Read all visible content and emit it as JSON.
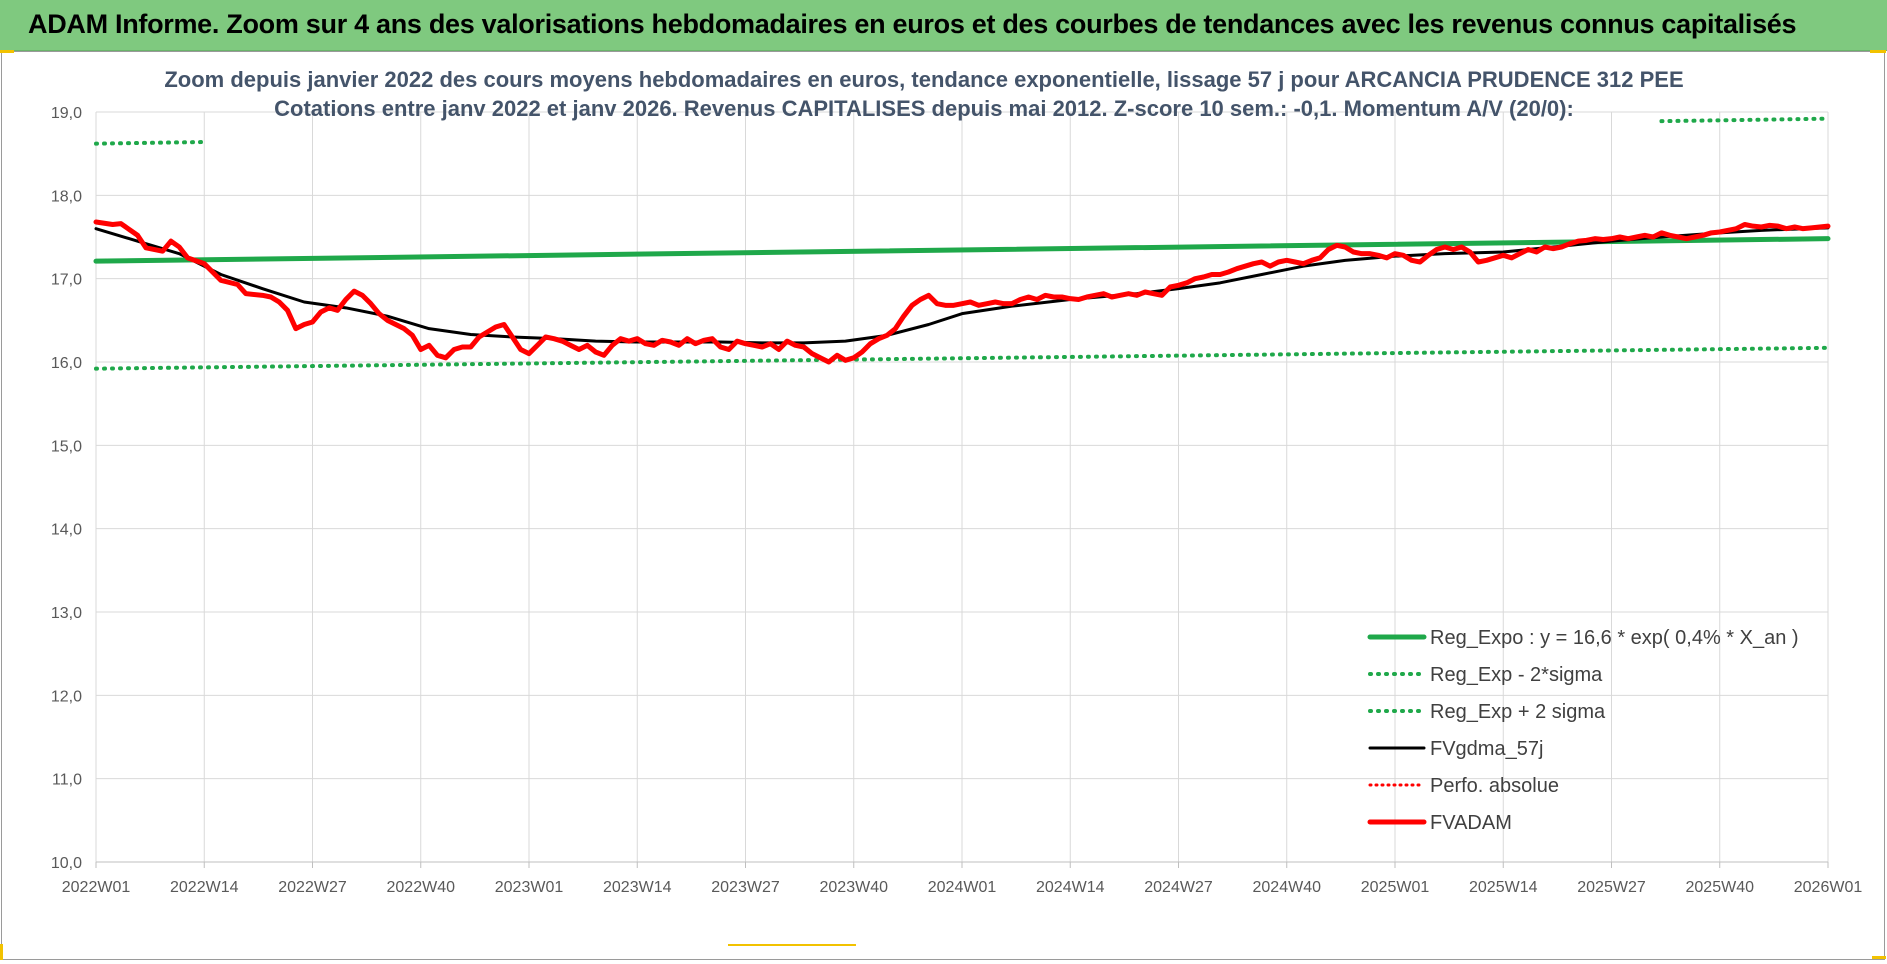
{
  "banner": {
    "title": "ADAM Informe. Zoom sur 4 ans des valorisations hebdomadaires en euros et des courbes de tendances avec les revenus connus capitalisés",
    "background": "#7fc97f"
  },
  "chart_data": {
    "type": "line",
    "title": "Zoom depuis janvier 2022 des cours moyens hebdomadaires en euros, tendance exponentielle, lissage 57 j pour ARCANCIA PRUDENCE 312 PEE",
    "subtitle": "Cotations entre janv 2022 et janv 2026. Revenus CAPITALISES depuis mai 2012. Z-score 10 sem.: -0,1. Momentum A/V (20/0):",
    "ylim": [
      10.0,
      19.0
    ],
    "yticks": [
      "10,0",
      "11,0",
      "12,0",
      "13,0",
      "14,0",
      "15,0",
      "16,0",
      "17,0",
      "18,0",
      "19,0"
    ],
    "ytick_values": [
      10,
      11,
      12,
      13,
      14,
      15,
      16,
      17,
      18,
      19
    ],
    "x_count": 209,
    "xticks": [
      {
        "index": 0,
        "label": "2022W01"
      },
      {
        "index": 13,
        "label": "2022W14"
      },
      {
        "index": 26,
        "label": "2022W27"
      },
      {
        "index": 39,
        "label": "2022W40"
      },
      {
        "index": 52,
        "label": "2023W01"
      },
      {
        "index": 65,
        "label": "2023W14"
      },
      {
        "index": 78,
        "label": "2023W27"
      },
      {
        "index": 91,
        "label": "2023W40"
      },
      {
        "index": 104,
        "label": "2024W01"
      },
      {
        "index": 117,
        "label": "2024W14"
      },
      {
        "index": 130,
        "label": "2024W27"
      },
      {
        "index": 143,
        "label": "2024W40"
      },
      {
        "index": 156,
        "label": "2025W01"
      },
      {
        "index": 169,
        "label": "2025W14"
      },
      {
        "index": 182,
        "label": "2025W27"
      },
      {
        "index": 195,
        "label": "2025W40"
      },
      {
        "index": 208,
        "label": "2026W01"
      }
    ],
    "grid": true,
    "legend_position": "bottom-right",
    "series": [
      {
        "name": "Reg_Expo : y = 16,6 * exp( 0,4% *  X_an )",
        "color": "#1fa84a",
        "style": "solid",
        "width": 5,
        "points": [
          [
            0,
            17.21
          ],
          [
            208,
            17.48
          ]
        ]
      },
      {
        "name": "Reg_Exp - 2*sigma",
        "color": "#1fa84a",
        "style": "dotted",
        "width": 4,
        "points": [
          [
            0,
            15.92
          ],
          [
            208,
            16.17
          ]
        ]
      },
      {
        "name": "Reg_Exp + 2 sigma",
        "color": "#1fa84a",
        "style": "dotted",
        "width": 4,
        "segments": [
          [
            [
              0,
              18.62
            ],
            [
              13,
              18.64
            ]
          ],
          [
            [
              188,
              18.89
            ],
            [
              208,
              18.92
            ]
          ]
        ]
      },
      {
        "name": "FVgdma_57j",
        "color": "#000000",
        "style": "solid",
        "width": 3,
        "points": [
          [
            0,
            17.6
          ],
          [
            5,
            17.45
          ],
          [
            10,
            17.3
          ],
          [
            15,
            17.05
          ],
          [
            20,
            16.88
          ],
          [
            25,
            16.72
          ],
          [
            30,
            16.65
          ],
          [
            35,
            16.55
          ],
          [
            40,
            16.4
          ],
          [
            45,
            16.33
          ],
          [
            50,
            16.3
          ],
          [
            55,
            16.28
          ],
          [
            60,
            16.25
          ],
          [
            65,
            16.24
          ],
          [
            70,
            16.24
          ],
          [
            75,
            16.24
          ],
          [
            80,
            16.23
          ],
          [
            85,
            16.23
          ],
          [
            90,
            16.25
          ],
          [
            95,
            16.32
          ],
          [
            100,
            16.45
          ],
          [
            104,
            16.58
          ],
          [
            110,
            16.67
          ],
          [
            117,
            16.75
          ],
          [
            125,
            16.82
          ],
          [
            130,
            16.88
          ],
          [
            135,
            16.95
          ],
          [
            140,
            17.05
          ],
          [
            145,
            17.15
          ],
          [
            150,
            17.22
          ],
          [
            156,
            17.27
          ],
          [
            162,
            17.3
          ],
          [
            169,
            17.32
          ],
          [
            175,
            17.38
          ],
          [
            182,
            17.45
          ],
          [
            188,
            17.5
          ],
          [
            195,
            17.55
          ],
          [
            200,
            17.58
          ],
          [
            208,
            17.61
          ]
        ]
      },
      {
        "name": "Perfo. absolue",
        "color": "#ff0000",
        "style": "dotted",
        "width": 3,
        "points": []
      },
      {
        "name": "FVADAM",
        "color": "#ff0000",
        "style": "solid",
        "width": 5,
        "points": [
          [
            0,
            17.68
          ],
          [
            2,
            17.65
          ],
          [
            3,
            17.66
          ],
          [
            5,
            17.52
          ],
          [
            6,
            17.37
          ],
          [
            8,
            17.33
          ],
          [
            9,
            17.45
          ],
          [
            10,
            17.38
          ],
          [
            11,
            17.25
          ],
          [
            13,
            17.18
          ],
          [
            14,
            17.08
          ],
          [
            15,
            16.98
          ],
          [
            17,
            16.93
          ],
          [
            18,
            16.82
          ],
          [
            20,
            16.8
          ],
          [
            21,
            16.78
          ],
          [
            22,
            16.72
          ],
          [
            23,
            16.62
          ],
          [
            24,
            16.4
          ],
          [
            25,
            16.45
          ],
          [
            26,
            16.48
          ],
          [
            27,
            16.6
          ],
          [
            28,
            16.65
          ],
          [
            29,
            16.62
          ],
          [
            30,
            16.75
          ],
          [
            31,
            16.85
          ],
          [
            32,
            16.8
          ],
          [
            33,
            16.7
          ],
          [
            34,
            16.58
          ],
          [
            35,
            16.5
          ],
          [
            36,
            16.45
          ],
          [
            37,
            16.4
          ],
          [
            38,
            16.32
          ],
          [
            39,
            16.15
          ],
          [
            40,
            16.2
          ],
          [
            41,
            16.08
          ],
          [
            42,
            16.05
          ],
          [
            43,
            16.15
          ],
          [
            44,
            16.18
          ],
          [
            45,
            16.18
          ],
          [
            46,
            16.3
          ],
          [
            47,
            16.36
          ],
          [
            48,
            16.42
          ],
          [
            49,
            16.45
          ],
          [
            50,
            16.3
          ],
          [
            51,
            16.15
          ],
          [
            52,
            16.1
          ],
          [
            53,
            16.2
          ],
          [
            54,
            16.3
          ],
          [
            55,
            16.28
          ],
          [
            56,
            16.25
          ],
          [
            57,
            16.2
          ],
          [
            58,
            16.15
          ],
          [
            59,
            16.2
          ],
          [
            60,
            16.12
          ],
          [
            61,
            16.08
          ],
          [
            62,
            16.2
          ],
          [
            63,
            16.28
          ],
          [
            64,
            16.25
          ],
          [
            65,
            16.28
          ],
          [
            66,
            16.22
          ],
          [
            67,
            16.2
          ],
          [
            68,
            16.26
          ],
          [
            69,
            16.24
          ],
          [
            70,
            16.2
          ],
          [
            71,
            16.28
          ],
          [
            72,
            16.22
          ],
          [
            73,
            16.26
          ],
          [
            74,
            16.28
          ],
          [
            75,
            16.18
          ],
          [
            76,
            16.15
          ],
          [
            77,
            16.25
          ],
          [
            78,
            16.22
          ],
          [
            79,
            16.2
          ],
          [
            80,
            16.18
          ],
          [
            81,
            16.22
          ],
          [
            82,
            16.15
          ],
          [
            83,
            16.25
          ],
          [
            84,
            16.2
          ],
          [
            85,
            16.18
          ],
          [
            86,
            16.1
          ],
          [
            87,
            16.05
          ],
          [
            88,
            16.0
          ],
          [
            89,
            16.08
          ],
          [
            90,
            16.02
          ],
          [
            91,
            16.05
          ],
          [
            92,
            16.12
          ],
          [
            93,
            16.22
          ],
          [
            94,
            16.28
          ],
          [
            95,
            16.32
          ],
          [
            96,
            16.4
          ],
          [
            97,
            16.55
          ],
          [
            98,
            16.68
          ],
          [
            99,
            16.75
          ],
          [
            100,
            16.8
          ],
          [
            101,
            16.7
          ],
          [
            102,
            16.68
          ],
          [
            103,
            16.68
          ],
          [
            104,
            16.7
          ],
          [
            105,
            16.72
          ],
          [
            106,
            16.68
          ],
          [
            107,
            16.7
          ],
          [
            108,
            16.72
          ],
          [
            109,
            16.7
          ],
          [
            110,
            16.7
          ],
          [
            111,
            16.75
          ],
          [
            112,
            16.78
          ],
          [
            113,
            16.75
          ],
          [
            114,
            16.8
          ],
          [
            115,
            16.78
          ],
          [
            116,
            16.78
          ],
          [
            117,
            16.76
          ],
          [
            118,
            16.75
          ],
          [
            119,
            16.78
          ],
          [
            120,
            16.8
          ],
          [
            121,
            16.82
          ],
          [
            122,
            16.78
          ],
          [
            123,
            16.8
          ],
          [
            124,
            16.82
          ],
          [
            125,
            16.8
          ],
          [
            126,
            16.84
          ],
          [
            127,
            16.82
          ],
          [
            128,
            16.8
          ],
          [
            129,
            16.9
          ],
          [
            130,
            16.92
          ],
          [
            131,
            16.95
          ],
          [
            132,
            17.0
          ],
          [
            133,
            17.02
          ],
          [
            134,
            17.05
          ],
          [
            135,
            17.05
          ],
          [
            136,
            17.08
          ],
          [
            137,
            17.12
          ],
          [
            138,
            17.15
          ],
          [
            139,
            17.18
          ],
          [
            140,
            17.2
          ],
          [
            141,
            17.15
          ],
          [
            142,
            17.2
          ],
          [
            143,
            17.22
          ],
          [
            144,
            17.2
          ],
          [
            145,
            17.18
          ],
          [
            146,
            17.22
          ],
          [
            147,
            17.25
          ],
          [
            148,
            17.35
          ],
          [
            149,
            17.4
          ],
          [
            150,
            17.38
          ],
          [
            151,
            17.32
          ],
          [
            152,
            17.3
          ],
          [
            153,
            17.3
          ],
          [
            154,
            17.28
          ],
          [
            155,
            17.25
          ],
          [
            156,
            17.3
          ],
          [
            157,
            17.28
          ],
          [
            158,
            17.22
          ],
          [
            159,
            17.2
          ],
          [
            160,
            17.28
          ],
          [
            161,
            17.35
          ],
          [
            162,
            17.38
          ],
          [
            163,
            17.35
          ],
          [
            164,
            17.38
          ],
          [
            165,
            17.32
          ],
          [
            166,
            17.2
          ],
          [
            167,
            17.22
          ],
          [
            168,
            17.25
          ],
          [
            169,
            17.28
          ],
          [
            170,
            17.25
          ],
          [
            171,
            17.3
          ],
          [
            172,
            17.35
          ],
          [
            173,
            17.32
          ],
          [
            174,
            17.38
          ],
          [
            175,
            17.36
          ],
          [
            176,
            17.38
          ],
          [
            177,
            17.42
          ],
          [
            178,
            17.45
          ],
          [
            179,
            17.46
          ],
          [
            180,
            17.48
          ],
          [
            181,
            17.47
          ],
          [
            182,
            17.48
          ],
          [
            183,
            17.5
          ],
          [
            184,
            17.48
          ],
          [
            185,
            17.5
          ],
          [
            186,
            17.52
          ],
          [
            187,
            17.5
          ],
          [
            188,
            17.55
          ],
          [
            189,
            17.52
          ],
          [
            190,
            17.5
          ],
          [
            191,
            17.48
          ],
          [
            192,
            17.5
          ],
          [
            193,
            17.52
          ],
          [
            194,
            17.55
          ],
          [
            195,
            17.56
          ],
          [
            196,
            17.58
          ],
          [
            197,
            17.6
          ],
          [
            198,
            17.65
          ],
          [
            199,
            17.63
          ],
          [
            200,
            17.62
          ],
          [
            201,
            17.64
          ],
          [
            202,
            17.63
          ],
          [
            203,
            17.6
          ],
          [
            204,
            17.62
          ],
          [
            205,
            17.6
          ],
          [
            206,
            17.61
          ],
          [
            207,
            17.62
          ],
          [
            208,
            17.63
          ]
        ]
      }
    ]
  }
}
